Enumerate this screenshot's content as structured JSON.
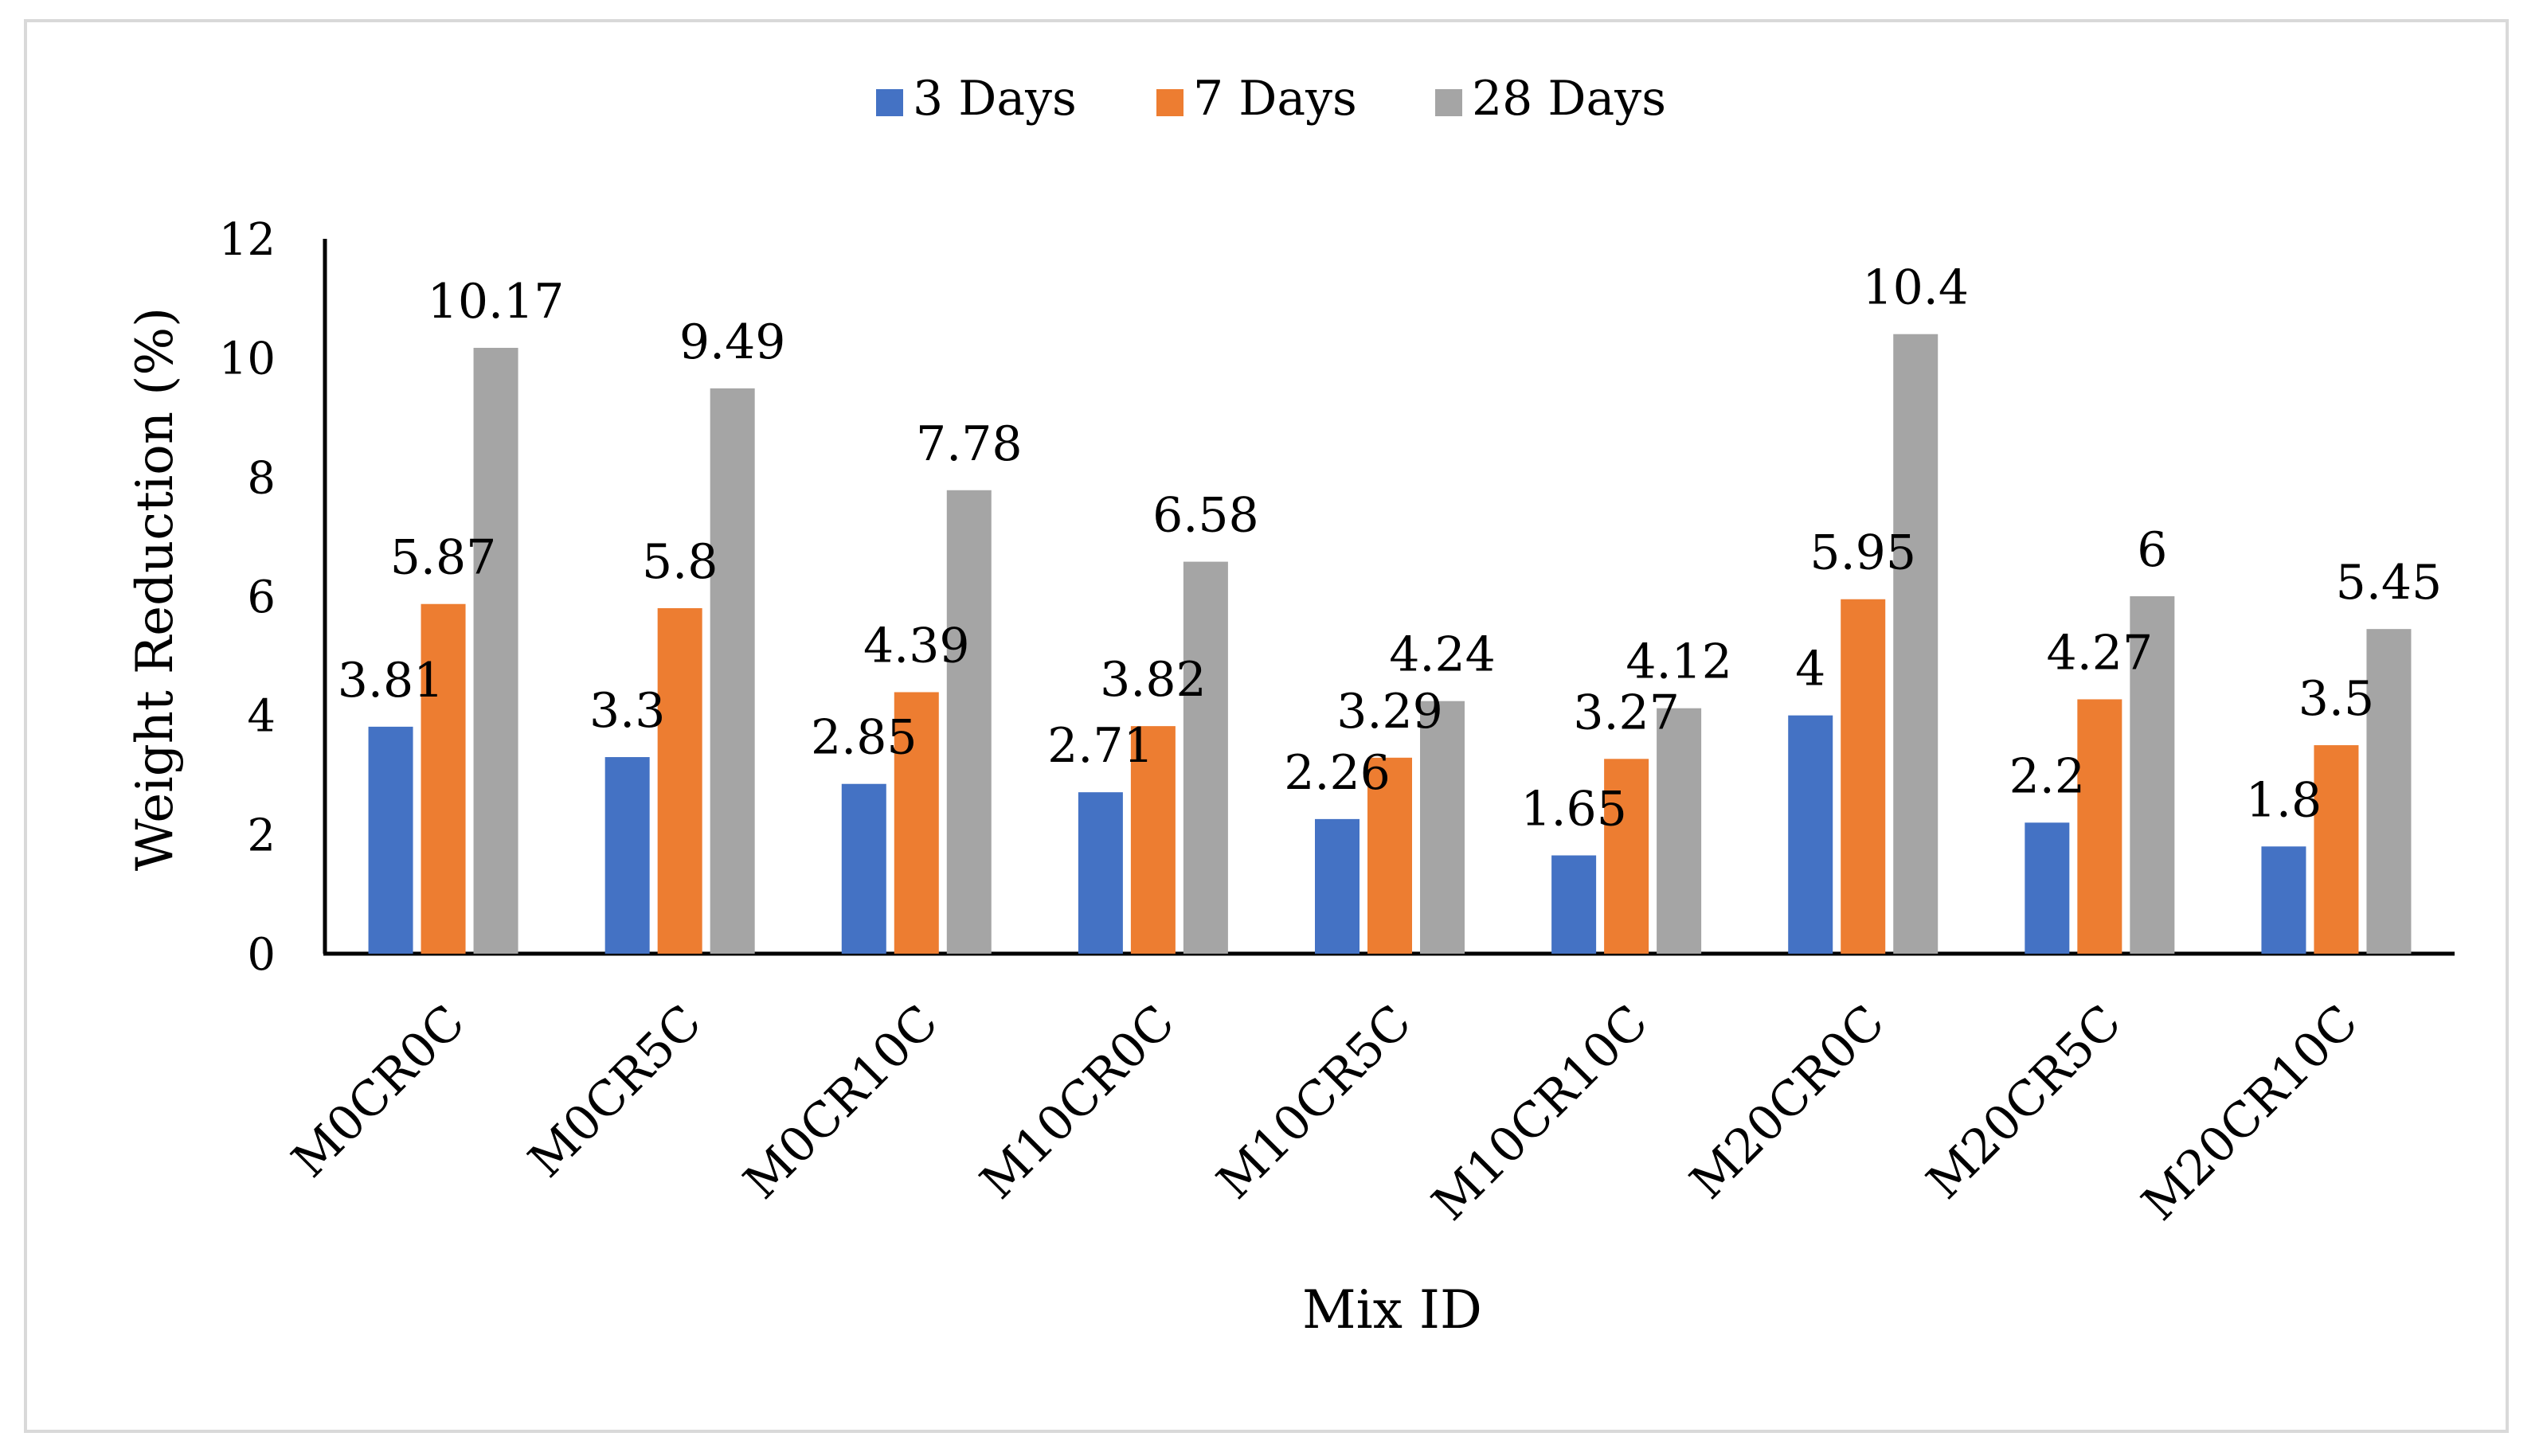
{
  "chart_data": {
    "type": "bar",
    "title": "",
    "xlabel": "Mix ID",
    "ylabel": "Weight Reduction (%)",
    "ylim": [
      0,
      12
    ],
    "yticks": [
      0,
      2,
      4,
      6,
      8,
      10,
      12
    ],
    "grid": false,
    "legend_position": "top-center",
    "categories": [
      "M0CR0C",
      "M0CR5C",
      "M0CR10C",
      "M10CR0C",
      "M10CR5C",
      "M10CR10C",
      "M20CR0C",
      "M20CR5C",
      "M20CR10C"
    ],
    "series": [
      {
        "name": "3 Days",
        "color": "#4472C4",
        "values": [
          3.81,
          3.3,
          2.85,
          2.71,
          2.26,
          1.65,
          4,
          2.2,
          1.8
        ],
        "labels": [
          "3.81",
          "3.3",
          "2.85",
          "2.71",
          "2.26",
          "1.65",
          "4",
          "2.2",
          "1.8"
        ]
      },
      {
        "name": "7 Days",
        "color": "#ED7D31",
        "values": [
          5.87,
          5.8,
          4.39,
          3.82,
          3.29,
          3.27,
          5.95,
          4.27,
          3.5
        ],
        "labels": [
          "5.87",
          "5.8",
          "4.39",
          "3.82",
          "3.29",
          "3.27",
          "5.95",
          "4.27",
          "3.5"
        ]
      },
      {
        "name": "28 Days",
        "color": "#A5A5A5",
        "values": [
          10.17,
          9.49,
          7.78,
          6.58,
          4.24,
          4.12,
          10.4,
          6,
          5.45
        ],
        "labels": [
          "10.17",
          "9.49",
          "7.78",
          "6.58",
          "4.24",
          "4.12",
          "10.4",
          "6",
          "5.45"
        ]
      }
    ]
  }
}
